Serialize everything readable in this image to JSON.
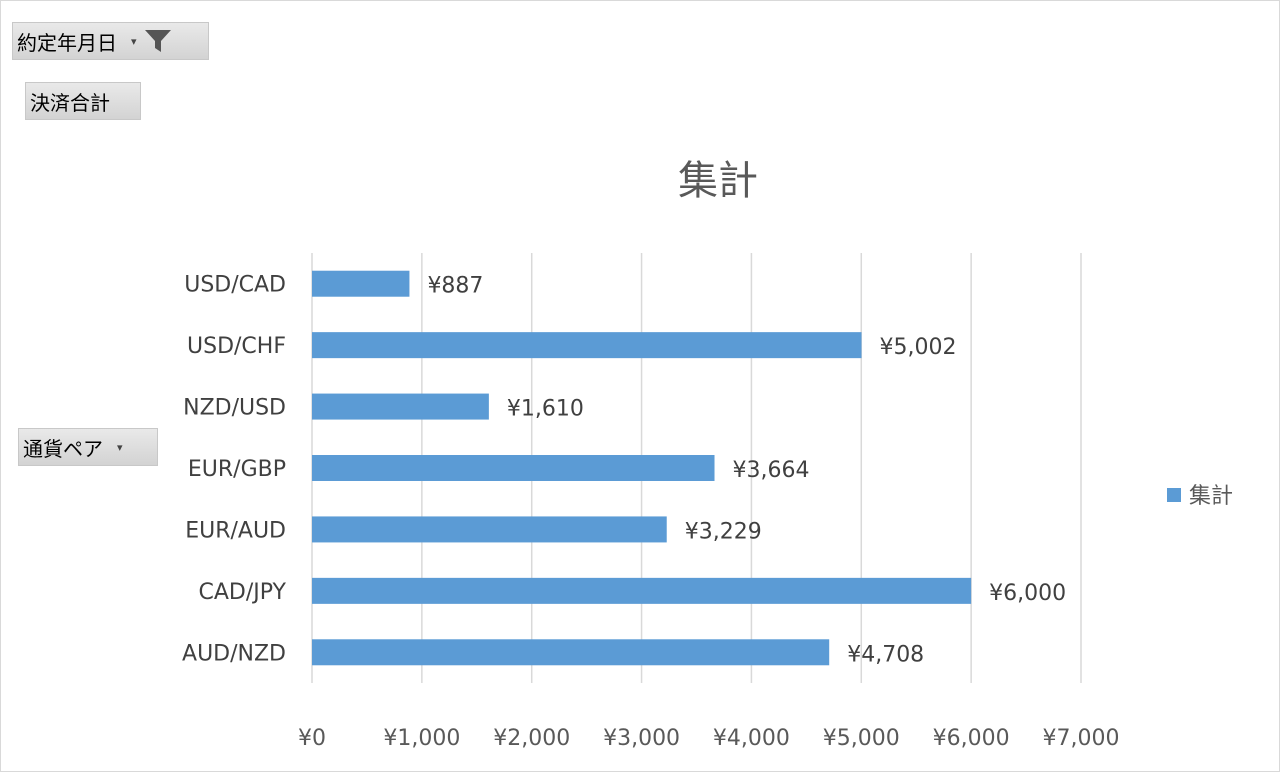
{
  "pivot": {
    "filter_field": "約定年月日",
    "value_field": "決済合計",
    "axis_field": "通貨ペア"
  },
  "colors": {
    "bar": "#5b9bd5",
    "grid": "#d9d9d9"
  },
  "chart_data": {
    "type": "bar",
    "orientation": "horizontal",
    "title": "集計",
    "categories": [
      "USD/CAD",
      "USD/CHF",
      "NZD/USD",
      "EUR/GBP",
      "EUR/AUD",
      "CAD/JPY",
      "AUD/NZD"
    ],
    "values": [
      887,
      5002,
      1610,
      3664,
      3229,
      6000,
      4708
    ],
    "data_labels": [
      "¥887",
      "¥5,002",
      "¥1,610",
      "¥3,664",
      "¥3,229",
      "¥6,000",
      "¥4,708"
    ],
    "ticks": [
      0,
      1000,
      2000,
      3000,
      4000,
      5000,
      6000,
      7000
    ],
    "tick_labels": [
      "¥0",
      "¥1,000",
      "¥2,000",
      "¥3,000",
      "¥4,000",
      "¥5,000",
      "¥6,000",
      "¥7,000"
    ],
    "xlim": [
      0,
      7000
    ],
    "grid": true,
    "legend": {
      "position": "right",
      "entries": [
        "集計"
      ]
    }
  }
}
